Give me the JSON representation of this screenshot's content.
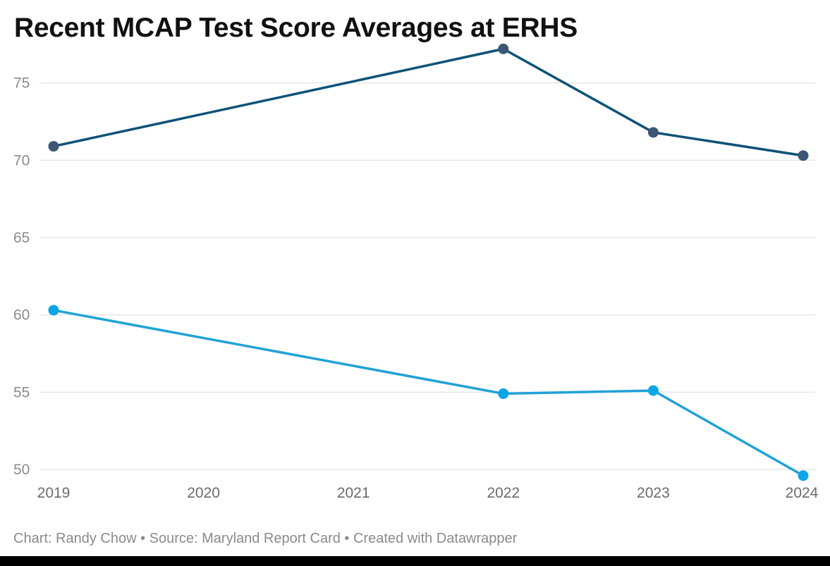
{
  "chart_data": {
    "type": "line",
    "title": "Recent MCAP Test Score Averages at ERHS",
    "xlabel": "",
    "ylabel": "",
    "x_ticks": [
      "2019",
      "2020",
      "2021",
      "2022",
      "2023",
      "2024"
    ],
    "y_ticks": [
      "50",
      "55",
      "60",
      "65",
      "70",
      "75"
    ],
    "ylim": [
      50,
      77.5
    ],
    "xlim": [
      2019,
      2024
    ],
    "grid": "horizontal",
    "legend": "none",
    "series": [
      {
        "color": "#0d5277",
        "marker_color": "#3c5673",
        "x": [
          2019,
          2022,
          2023,
          2024
        ],
        "values": [
          70.9,
          77.2,
          71.8,
          70.3
        ]
      },
      {
        "color": "#22a2d6",
        "marker_color": "#0ba6e6",
        "x": [
          2019,
          2022,
          2023,
          2024
        ],
        "values": [
          60.3,
          54.9,
          55.1,
          49.6
        ]
      }
    ]
  },
  "footer": {
    "credit": "Chart: Randy Chow • Source: Maryland Report Card • Created with Datawrapper"
  }
}
